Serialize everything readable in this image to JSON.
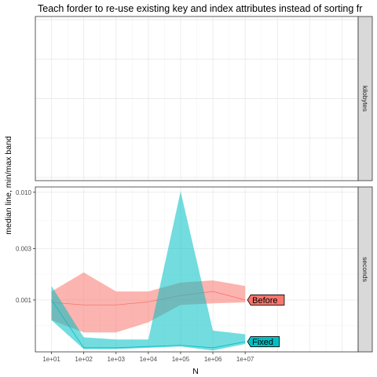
{
  "chart_data": {
    "type": "area",
    "title": "Teach forder to re-use existing key and index attributes instead of sorting fr",
    "xlabel": "N",
    "ylabel": "median line, min/max band",
    "x": [
      10,
      100,
      1000,
      10000,
      100000,
      1000000,
      10000000
    ],
    "x_tick_labels": [
      "1e+01",
      "1e+02",
      "1e+03",
      "1e+04",
      "1e+05",
      "1e+06",
      "1e+07"
    ],
    "x_scale": "log10",
    "grid": true,
    "legend": "direct labels at right end of each series",
    "colors": {
      "Before": "#F8766D",
      "Fixed": "#00BFC4"
    },
    "panels": [
      {
        "strip": "kilobytes",
        "series": []
      },
      {
        "strip": "seconds",
        "y_scale": "log10",
        "y_ticks": [
          0.001,
          0.003,
          0.01
        ],
        "y_tick_labels": [
          "0.001",
          "0.003",
          "0.010"
        ],
        "series": [
          {
            "name": "Before",
            "median": [
              0.00095,
              0.0009,
              0.0009,
              0.00096,
              0.0011,
              0.0012,
              0.001
            ],
            "min": [
              0.00065,
              0.0005,
              0.0005,
              0.00062,
              0.0009,
              0.00093,
              0.00095
            ],
            "max": [
              0.0012,
              0.0018,
              0.0012,
              0.0012,
              0.00145,
              0.00152,
              0.00135
            ]
          },
          {
            "name": "Fixed",
            "median": [
              0.001,
              0.00036,
              0.00036,
              0.00037,
              0.00038,
              0.00036,
              0.00041
            ],
            "min": [
              0.00065,
              0.00035,
              0.00035,
              0.00036,
              0.00037,
              0.00034,
              0.00039
            ],
            "max": [
              0.00135,
              0.00045,
              0.00043,
              0.00043,
              0.0102,
              0.00052,
              0.00048
            ]
          }
        ]
      }
    ]
  }
}
